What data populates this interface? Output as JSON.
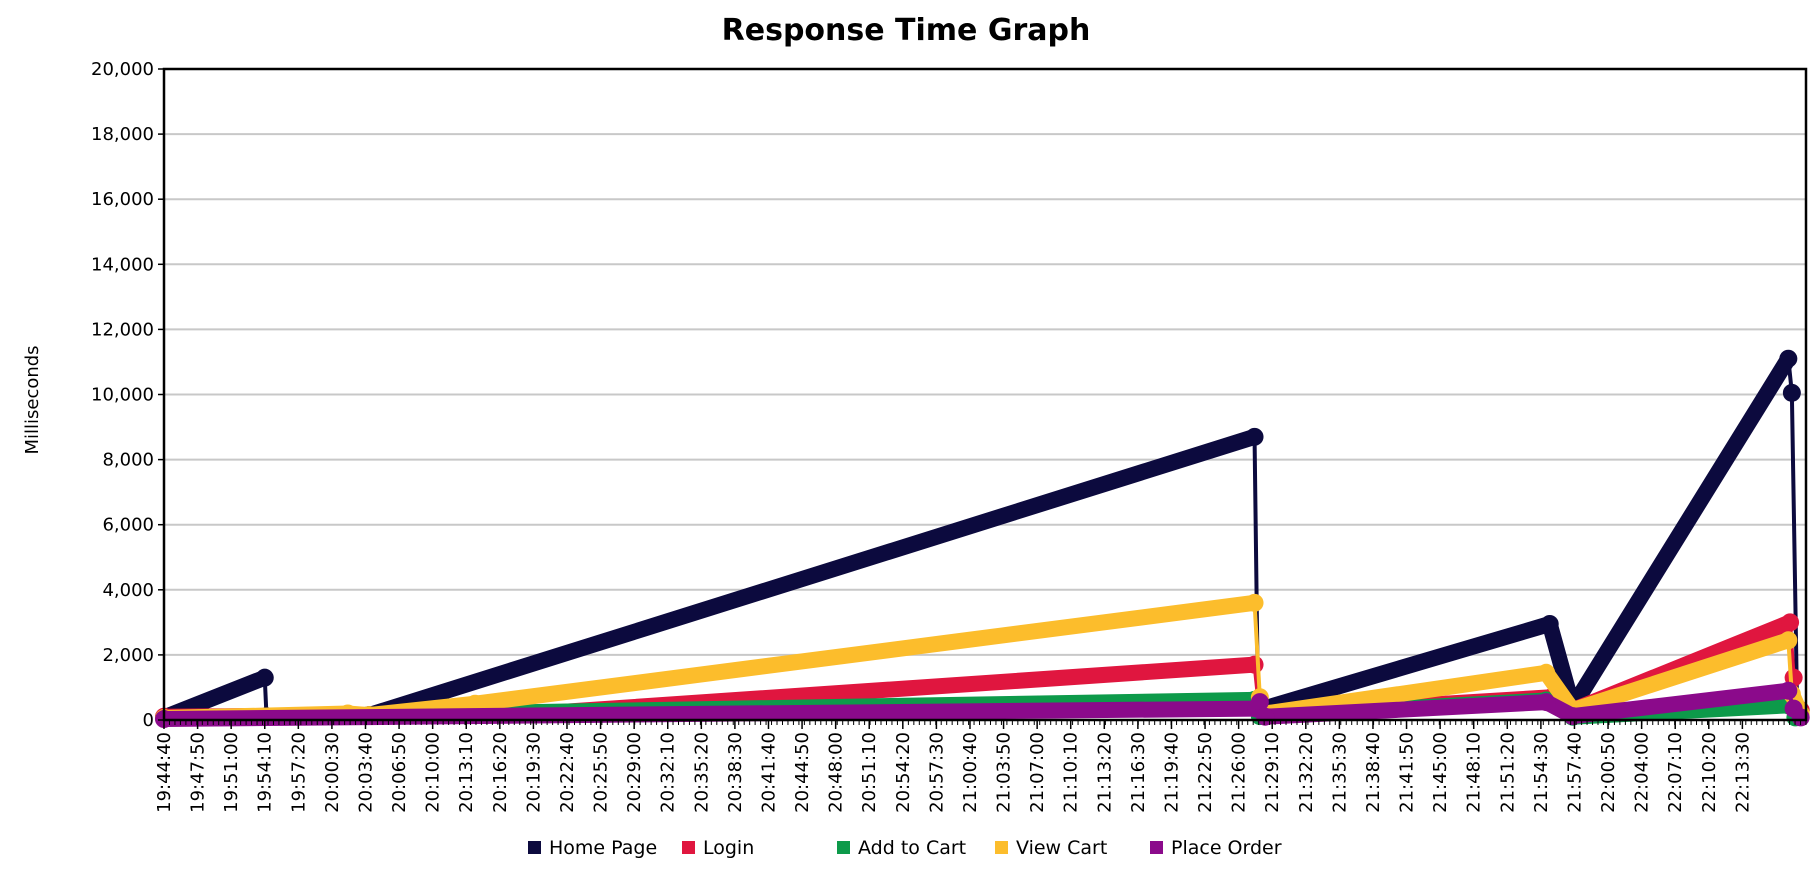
{
  "chart_data": {
    "type": "line",
    "title": "Response Time Graph",
    "xlabel": "",
    "ylabel": "Milliseconds",
    "ylim": [
      0,
      20000
    ],
    "yticks": [
      0,
      2000,
      4000,
      6000,
      8000,
      10000,
      12000,
      14000,
      16000,
      18000,
      20000
    ],
    "ytick_labels": [
      "0",
      "2,000",
      "4,000",
      "6,000",
      "8,000",
      "10,000",
      "12,000",
      "14,000",
      "16,000",
      "18,000",
      "20,000"
    ],
    "x_type": "time",
    "xlim": [
      "19:44:40",
      "22:19:30"
    ],
    "xtick_labels": [
      "19:44:40",
      "19:47:50",
      "19:51:00",
      "19:54:10",
      "19:57:20",
      "20:00:30",
      "20:03:40",
      "20:06:50",
      "20:10:00",
      "20:13:10",
      "20:16:20",
      "20:19:30",
      "20:22:40",
      "20:25:50",
      "20:29:00",
      "20:32:10",
      "20:35:20",
      "20:38:30",
      "20:41:40",
      "20:44:50",
      "20:48:00",
      "20:51:10",
      "20:54:20",
      "20:57:30",
      "21:00:40",
      "21:03:50",
      "21:07:00",
      "21:10:10",
      "21:13:20",
      "21:16:30",
      "21:19:40",
      "21:22:50",
      "21:26:00",
      "21:29:10",
      "21:32:20",
      "21:35:30",
      "21:38:40",
      "21:41:50",
      "21:45:00",
      "21:48:10",
      "21:51:20",
      "21:54:30",
      "21:57:40",
      "22:00:50",
      "22:04:00",
      "22:07:10",
      "22:10:20",
      "22:13:30"
    ],
    "grid": true,
    "legend_position": "bottom",
    "series": [
      {
        "name": "Home Page",
        "color": "#0c0a3e",
        "points": [
          [
            "19:44:40",
            80
          ],
          [
            "19:54:10",
            1300
          ],
          [
            "19:54:20",
            120
          ],
          [
            "20:04:00",
            150
          ],
          [
            "21:27:30",
            8700
          ],
          [
            "21:27:50",
            300
          ],
          [
            "21:55:20",
            2950
          ],
          [
            "21:57:30",
            400
          ],
          [
            "22:17:50",
            11100
          ],
          [
            "22:18:10",
            10050
          ],
          [
            "22:18:40",
            300
          ]
        ]
      },
      {
        "name": "Login",
        "color": "#e0163f",
        "points": [
          [
            "19:44:40",
            100
          ],
          [
            "20:20:00",
            200
          ],
          [
            "21:27:30",
            1700
          ],
          [
            "21:28:00",
            150
          ],
          [
            "21:55:30",
            700
          ],
          [
            "21:57:30",
            300
          ],
          [
            "22:18:00",
            3000
          ],
          [
            "22:18:20",
            1300
          ],
          [
            "22:19:00",
            300
          ]
        ]
      },
      {
        "name": "Add to Cart",
        "color": "#0d9a4a",
        "points": [
          [
            "19:44:40",
            50
          ],
          [
            "21:27:30",
            620
          ],
          [
            "21:28:00",
            120
          ],
          [
            "21:55:00",
            600
          ],
          [
            "21:57:30",
            100
          ],
          [
            "22:17:50",
            450
          ],
          [
            "22:18:30",
            80
          ]
        ]
      },
      {
        "name": "View Cart",
        "color": "#fcbd2c",
        "points": [
          [
            "19:44:40",
            60
          ],
          [
            "20:02:00",
            200
          ],
          [
            "20:04:00",
            150
          ],
          [
            "20:14:00",
            500
          ],
          [
            "21:27:30",
            3600
          ],
          [
            "21:28:00",
            700
          ],
          [
            "21:28:30",
            200
          ],
          [
            "21:55:00",
            1450
          ],
          [
            "21:57:30",
            300
          ],
          [
            "22:17:50",
            2450
          ],
          [
            "22:18:10",
            800
          ],
          [
            "22:19:00",
            200
          ]
        ]
      },
      {
        "name": "Place Order",
        "color": "#8b0a8b",
        "points": [
          [
            "19:44:40",
            30
          ],
          [
            "21:27:40",
            350
          ],
          [
            "21:28:00",
            550
          ],
          [
            "21:28:30",
            100
          ],
          [
            "21:55:00",
            550
          ],
          [
            "21:57:30",
            120
          ],
          [
            "22:17:50",
            900
          ],
          [
            "22:18:20",
            350
          ],
          [
            "22:19:00",
            80
          ]
        ]
      }
    ]
  }
}
